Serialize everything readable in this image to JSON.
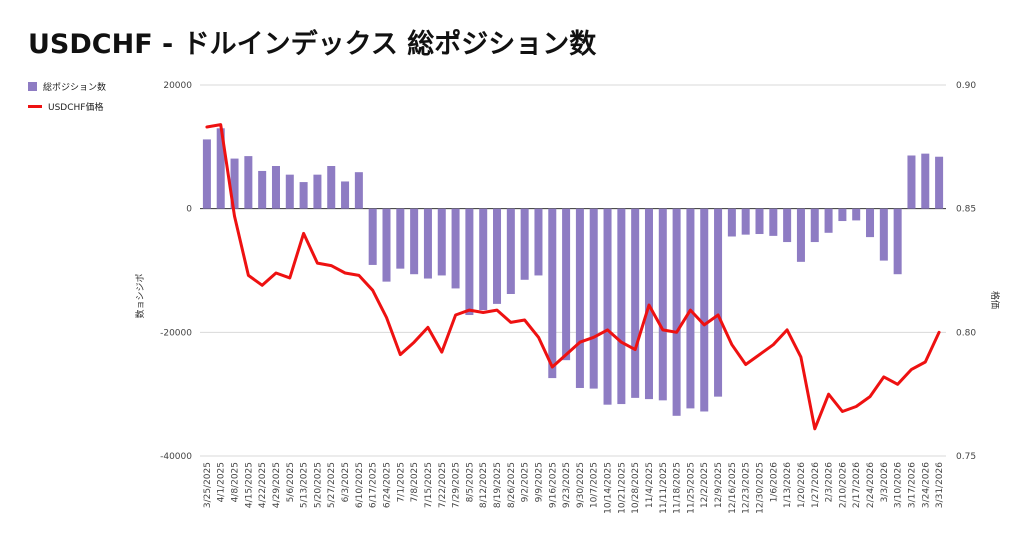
{
  "chart_data": {
    "type": "bar",
    "title": "USDCHF - ドルインデックス 総ポジション数",
    "ylabel_left": "数ョシジポ",
    "ylabel_right": "格価",
    "yleft_ticks": [
      "20000",
      "0",
      "-20000",
      "-40000"
    ],
    "yright_ticks": [
      "0.90",
      "0.85",
      "0.80",
      "0.75"
    ],
    "yleft_lim": [
      -40000,
      20000
    ],
    "yright_lim": [
      0.75,
      0.9
    ],
    "legend_position": "top-left",
    "grid": true,
    "categories": [
      "3/25/2025",
      "4/1/2025",
      "4/8/2025",
      "4/15/2025",
      "4/22/2025",
      "4/29/2025",
      "5/6/2025",
      "5/13/2025",
      "5/20/2025",
      "5/27/2025",
      "6/3/2025",
      "6/10/2025",
      "6/17/2025",
      "6/24/2025",
      "7/1/2025",
      "7/8/2025",
      "7/15/2025",
      "7/22/2025",
      "7/29/2025",
      "8/5/2025",
      "8/12/2025",
      "8/19/2025",
      "8/26/2025",
      "9/2/2025",
      "9/9/2025",
      "9/16/2025",
      "9/23/2025",
      "9/30/2025",
      "10/7/2025",
      "10/14/2025",
      "10/21/2025",
      "10/28/2025",
      "11/4/2025",
      "11/11/2025",
      "11/18/2025",
      "11/25/2025",
      "12/2/2025",
      "12/9/2025",
      "12/16/2025",
      "12/23/2025",
      "12/30/2025",
      "1/6/2026",
      "1/13/2026",
      "1/20/2026",
      "1/27/2026",
      "2/3/2026",
      "2/10/2026",
      "2/17/2026",
      "2/24/2026",
      "3/3/2026",
      "3/10/2026",
      "3/17/2026",
      "3/24/2026",
      "3/31/2026"
    ],
    "series": [
      {
        "name": "総ポジション数",
        "type": "bar",
        "axis": "left",
        "color": "#8e7cc3",
        "values": [
          11200,
          13000,
          8100,
          8500,
          6100,
          6900,
          5500,
          4300,
          5500,
          6900,
          4400,
          5900,
          -9100,
          -11800,
          -9700,
          -10600,
          -11300,
          -10800,
          -12900,
          -17200,
          -16400,
          -15400,
          -13800,
          -11500,
          -10800,
          -27400,
          -24500,
          -29000,
          -29100,
          -31700,
          -31600,
          -30600,
          -30800,
          -31000,
          -33500,
          -32300,
          -32800,
          -30400,
          -4500,
          -4200,
          -4100,
          -4400,
          -5400,
          -8600,
          -5400,
          -3900,
          -2000,
          -1900,
          -4600,
          -8400,
          -10600,
          8600,
          8900,
          8400
        ]
      },
      {
        "name": "USDCHF価格",
        "type": "line",
        "axis": "right",
        "color": "#ee1111",
        "values": [
          0.883,
          0.884,
          0.847,
          0.823,
          0.819,
          0.824,
          0.822,
          0.84,
          0.828,
          0.827,
          0.824,
          0.823,
          0.817,
          0.806,
          0.791,
          0.796,
          0.802,
          0.792,
          0.807,
          0.809,
          0.808,
          0.809,
          0.804,
          0.805,
          0.798,
          0.786,
          0.791,
          0.796,
          0.798,
          0.801,
          0.796,
          0.793,
          0.811,
          0.801,
          0.8,
          0.809,
          0.803,
          0.807,
          0.795,
          0.787,
          0.791,
          0.795,
          0.801,
          0.79,
          0.761,
          0.775,
          0.768,
          0.77,
          0.774,
          0.782,
          0.779,
          0.785,
          0.788,
          0.8
        ]
      }
    ]
  }
}
